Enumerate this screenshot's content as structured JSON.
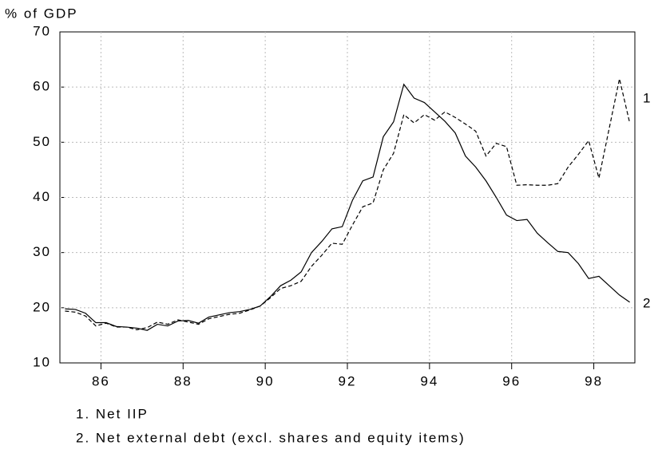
{
  "chart_data": {
    "type": "line",
    "y_label": "% of GDP",
    "x": [
      85.125,
      85.375,
      85.625,
      85.875,
      86.125,
      86.375,
      86.625,
      86.875,
      87.125,
      87.375,
      87.625,
      87.875,
      88.125,
      88.375,
      88.625,
      88.875,
      89.125,
      89.375,
      89.625,
      89.875,
      90.125,
      90.375,
      90.625,
      90.875,
      91.125,
      91.375,
      91.625,
      91.875,
      92.125,
      92.375,
      92.625,
      92.875,
      93.125,
      93.375,
      93.625,
      93.875,
      94.125,
      94.375,
      94.625,
      94.875,
      95.125,
      95.375,
      95.625,
      95.875,
      96.125,
      96.375,
      96.625,
      96.875,
      97.125,
      97.375,
      97.625,
      97.875,
      98.125,
      98.375,
      98.625,
      98.875
    ],
    "series": [
      {
        "name": "1. Net IIP",
        "end_label": "1",
        "color": "#000000",
        "dash": true,
        "values": [
          19.4,
          19.2,
          18.5,
          16.7,
          17.2,
          16.5,
          16.5,
          16.0,
          16.4,
          17.4,
          17.0,
          17.8,
          17.4,
          17.0,
          18.0,
          18.4,
          18.8,
          19.0,
          19.6,
          20.3,
          21.8,
          23.5,
          24.0,
          24.8,
          27.5,
          29.5,
          31.7,
          31.5,
          35.0,
          38.3,
          39.0,
          45.0,
          48.0,
          55.0,
          53.5,
          55.0,
          54.0,
          55.5,
          54.5,
          53.3,
          52.0,
          47.5,
          49.8,
          49.2,
          42.2,
          42.3,
          42.2,
          42.2,
          42.5,
          45.5,
          47.8,
          50.3,
          43.5,
          52.5,
          61.5,
          53.5
        ]
      },
      {
        "name": "2. Net external debt (excl. shares and equity items)",
        "end_label": "2",
        "color": "#000000",
        "dash": false,
        "values": [
          19.8,
          19.7,
          19.0,
          17.3,
          17.3,
          16.6,
          16.5,
          16.3,
          15.9,
          17.0,
          16.7,
          17.6,
          17.7,
          17.2,
          18.3,
          18.7,
          19.1,
          19.3,
          19.7,
          20.3,
          22.0,
          24.0,
          25.0,
          26.5,
          30.0,
          32.0,
          34.3,
          34.7,
          39.5,
          43.0,
          43.7,
          51.0,
          53.7,
          60.5,
          58.0,
          57.2,
          55.5,
          53.8,
          51.7,
          47.5,
          45.5,
          43.0,
          40.0,
          36.8,
          35.8,
          36.0,
          33.5,
          31.8,
          30.2,
          30.0,
          28.0,
          25.3,
          25.7,
          24.0,
          22.3,
          21.0
        ]
      }
    ],
    "xlim": [
      85,
      99
    ],
    "xticks": [
      86,
      88,
      90,
      92,
      94,
      96,
      98
    ],
    "ylim": [
      10,
      70
    ],
    "yticks": [
      10,
      20,
      30,
      40,
      50,
      60,
      70
    ],
    "grid": true
  }
}
